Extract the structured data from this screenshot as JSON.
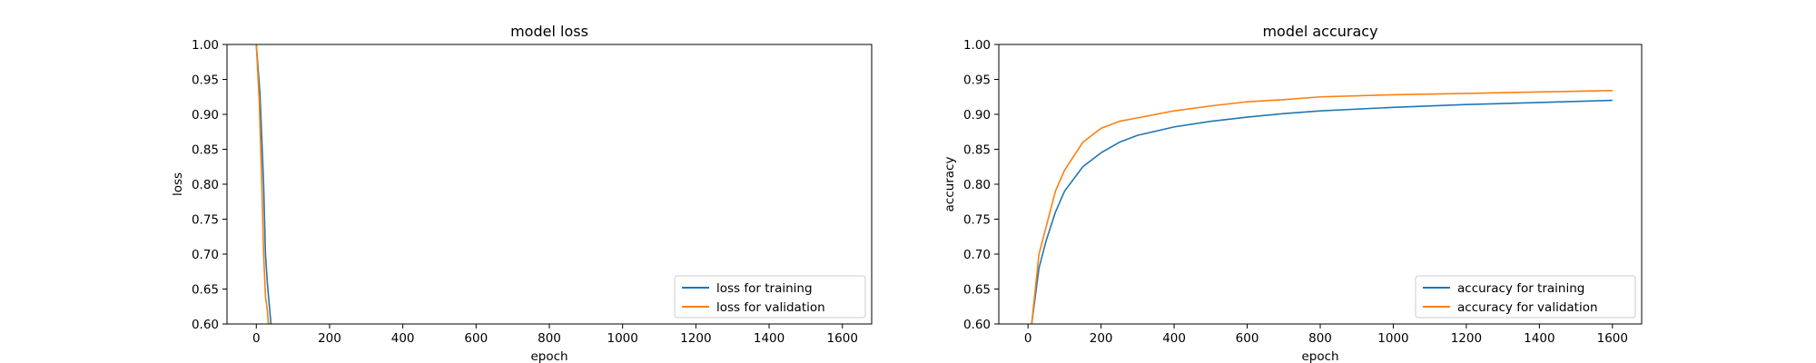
{
  "chart_data": [
    {
      "type": "line",
      "title": "model loss",
      "xlabel": "epoch",
      "ylabel": "loss",
      "xlim": [
        -80,
        1680
      ],
      "ylim": [
        0.6,
        1.0
      ],
      "xticks": [
        "0",
        "200",
        "400",
        "600",
        "800",
        "1000",
        "1200",
        "1400",
        "1600"
      ],
      "yticks": [
        "0.60",
        "0.65",
        "0.70",
        "0.75",
        "0.80",
        "0.85",
        "0.90",
        "0.95",
        "1.00"
      ],
      "legend_position": "lower-right",
      "series": [
        {
          "name": "loss for training",
          "color": "#1f77b4",
          "x": [
            0,
            10,
            20,
            25,
            30,
            35,
            40
          ],
          "y": [
            1.0,
            0.93,
            0.8,
            0.7,
            0.66,
            0.63,
            0.6
          ]
        },
        {
          "name": "loss for validation",
          "color": "#ff7f0e",
          "x": [
            0,
            8,
            15,
            20,
            25,
            30,
            33
          ],
          "y": [
            1.0,
            0.92,
            0.8,
            0.7,
            0.64,
            0.62,
            0.6
          ]
        }
      ]
    },
    {
      "type": "line",
      "title": "model accuracy",
      "xlabel": "epoch",
      "ylabel": "accuracy",
      "xlim": [
        -80,
        1680
      ],
      "ylim": [
        0.6,
        1.0
      ],
      "xticks": [
        "0",
        "200",
        "400",
        "600",
        "800",
        "1000",
        "1200",
        "1400",
        "1600"
      ],
      "yticks": [
        "0.60",
        "0.65",
        "0.70",
        "0.75",
        "0.80",
        "0.85",
        "0.90",
        "0.95",
        "1.00"
      ],
      "legend_position": "lower-right",
      "series": [
        {
          "name": "accuracy for training",
          "color": "#1f77b4",
          "x": [
            10,
            30,
            50,
            75,
            100,
            150,
            200,
            250,
            300,
            400,
            500,
            600,
            700,
            800,
            1000,
            1200,
            1400,
            1600
          ],
          "y": [
            0.6,
            0.68,
            0.72,
            0.76,
            0.79,
            0.825,
            0.845,
            0.86,
            0.87,
            0.882,
            0.89,
            0.896,
            0.901,
            0.905,
            0.91,
            0.914,
            0.917,
            0.92
          ]
        },
        {
          "name": "accuracy for validation",
          "color": "#ff7f0e",
          "x": [
            10,
            30,
            50,
            75,
            100,
            150,
            200,
            250,
            300,
            400,
            500,
            600,
            700,
            800,
            1000,
            1200,
            1400,
            1600
          ],
          "y": [
            0.6,
            0.7,
            0.74,
            0.79,
            0.82,
            0.86,
            0.88,
            0.89,
            0.895,
            0.905,
            0.912,
            0.918,
            0.921,
            0.925,
            0.928,
            0.93,
            0.932,
            0.934
          ]
        }
      ]
    }
  ]
}
